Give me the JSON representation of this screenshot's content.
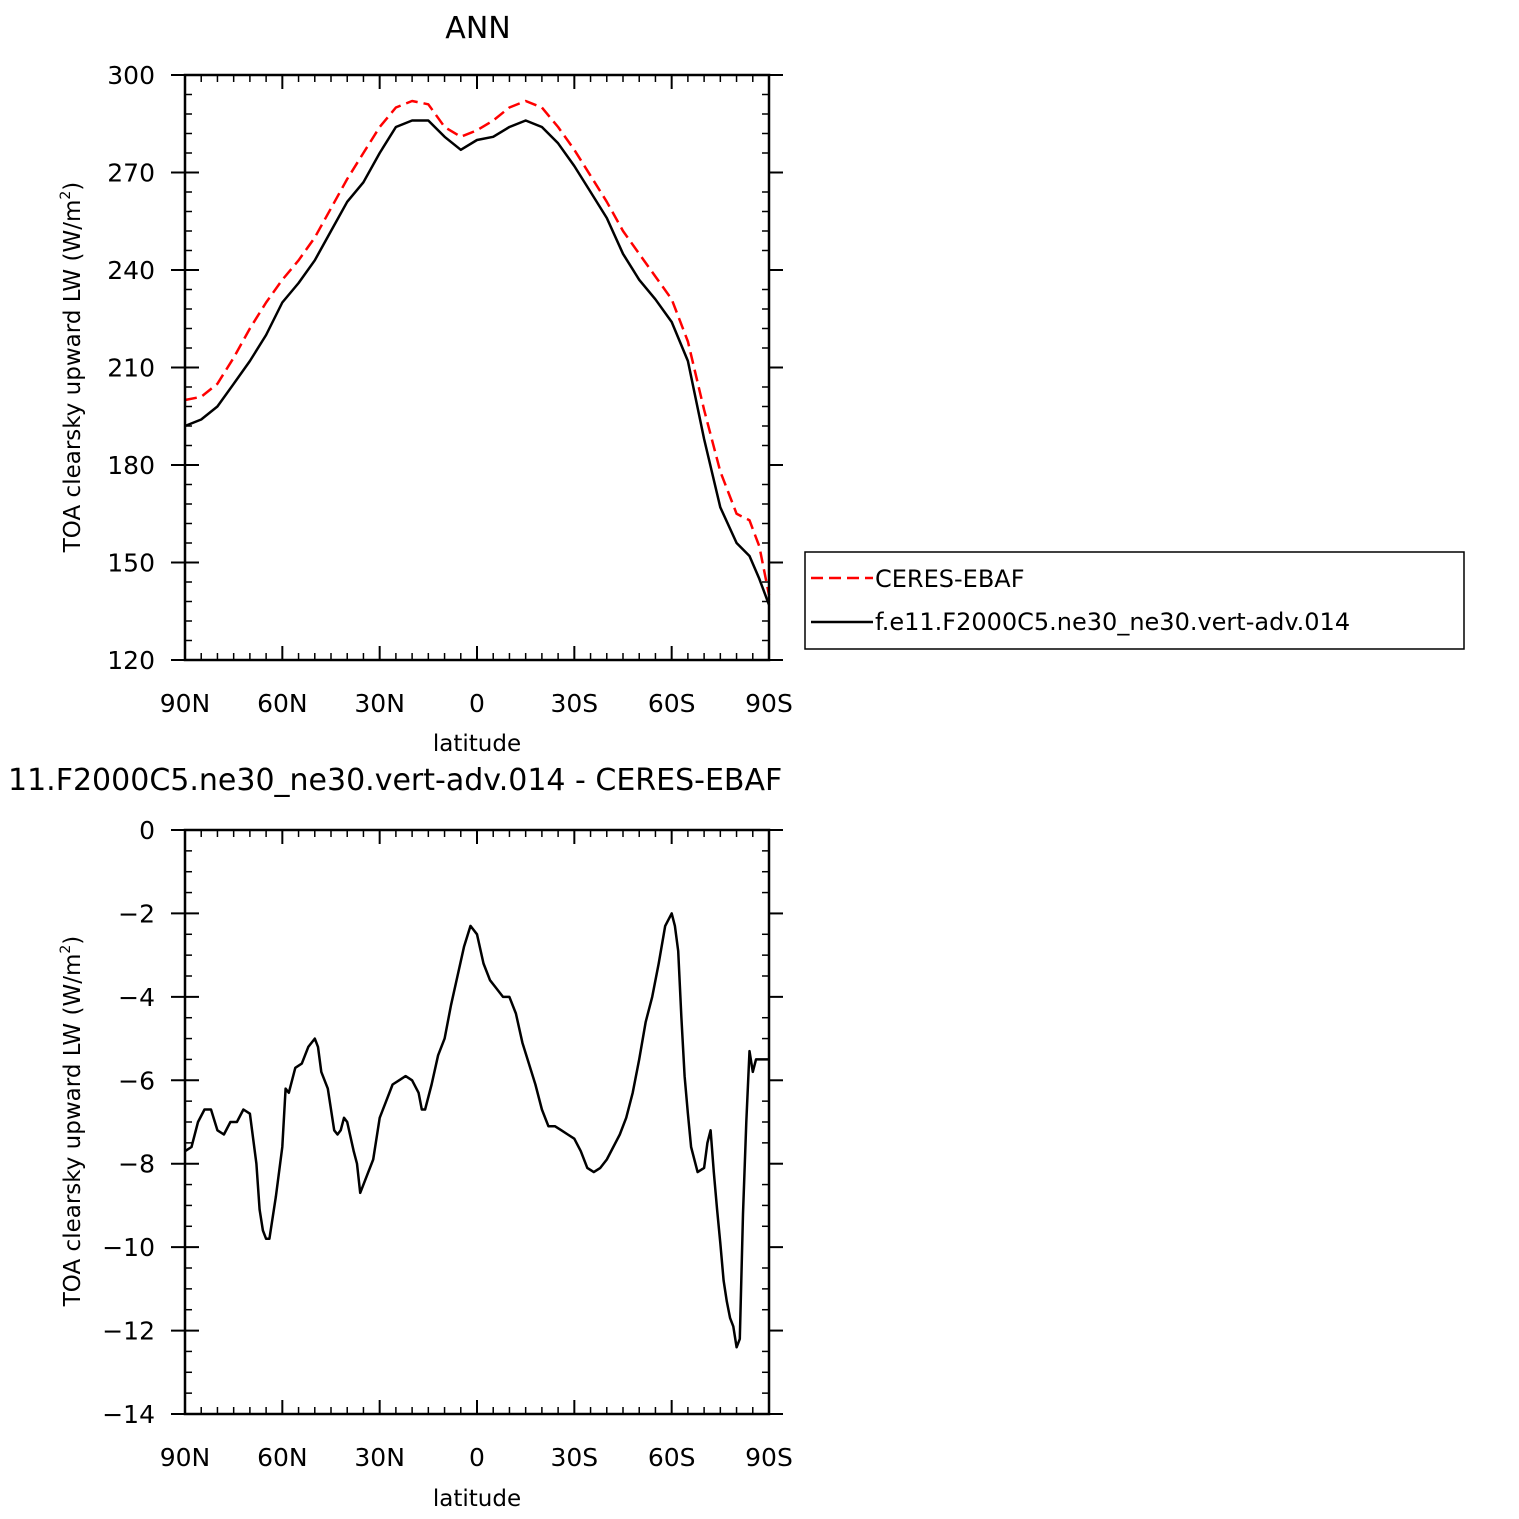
{
  "chart_data": [
    {
      "type": "line",
      "title": "ANN",
      "xlabel": "latitude",
      "ylabel": "TOA clearsky upward LW (W/m",
      "ylabel_sup": "2",
      "ylabel_close": ")",
      "xlim": [
        90,
        -90
      ],
      "ylim": [
        120,
        300
      ],
      "xticks": [
        90,
        60,
        30,
        0,
        -30,
        -60,
        -90
      ],
      "xticklabels": [
        "90N",
        "60N",
        "30N",
        "0",
        "30S",
        "60S",
        "90S"
      ],
      "yticks": [
        120,
        150,
        180,
        210,
        240,
        270,
        300
      ],
      "yticklabels": [
        "120",
        "150",
        "180",
        "210",
        "240",
        "270",
        "300"
      ],
      "legend_position": "right",
      "series": [
        {
          "name": "CERES-EBAF",
          "color": "#ff0000",
          "style": "dashed",
          "x": [
            90,
            85,
            80,
            75,
            70,
            65,
            60,
            55,
            50,
            45,
            40,
            35,
            30,
            25,
            20,
            15,
            10,
            5,
            0,
            -5,
            -10,
            -15,
            -20,
            -25,
            -30,
            -35,
            -40,
            -45,
            -50,
            -55,
            -60,
            -65,
            -70,
            -75,
            -80,
            -84,
            -87,
            -90
          ],
          "y": [
            200,
            201,
            205,
            213,
            222,
            230,
            237,
            243,
            250,
            259,
            268,
            276,
            284,
            290,
            292,
            291,
            284,
            281,
            283,
            286,
            290,
            292,
            290,
            284,
            277,
            269,
            261,
            252,
            245,
            238,
            231,
            218,
            197,
            178,
            165,
            163,
            155,
            140
          ]
        },
        {
          "name": "f.e11.F2000C5.ne30_ne30.vert-adv.014",
          "color": "#000000",
          "style": "solid",
          "x": [
            90,
            85,
            80,
            75,
            70,
            65,
            60,
            55,
            50,
            45,
            40,
            35,
            30,
            25,
            20,
            15,
            10,
            5,
            0,
            -5,
            -10,
            -15,
            -20,
            -25,
            -30,
            -35,
            -40,
            -45,
            -50,
            -55,
            -60,
            -65,
            -70,
            -75,
            -80,
            -84,
            -87,
            -90
          ],
          "y": [
            192,
            194,
            198,
            205,
            212,
            220,
            230,
            236,
            243,
            252,
            261,
            267,
            276,
            284,
            286,
            286,
            281,
            277,
            280,
            281,
            284,
            286,
            284,
            279,
            272,
            264,
            256,
            245,
            237,
            231,
            224,
            212,
            188,
            167,
            156,
            152,
            145,
            137
          ]
        }
      ]
    },
    {
      "type": "line",
      "title": "11.F2000C5.ne30_ne30.vert-adv.014 - CERES-EBAF",
      "xlabel": "latitude",
      "ylabel": "TOA clearsky upward LW (W/m",
      "ylabel_sup": "2",
      "ylabel_close": ")",
      "xlim": [
        90,
        -90
      ],
      "ylim": [
        -14,
        0
      ],
      "xticks": [
        90,
        60,
        30,
        0,
        -30,
        -60,
        -90
      ],
      "xticklabels": [
        "90N",
        "60N",
        "30N",
        "0",
        "30S",
        "60S",
        "90S"
      ],
      "yticks": [
        0,
        -2,
        -4,
        -6,
        -8,
        -10,
        -12,
        -14
      ],
      "yticklabels": [
        "0",
        "−2",
        "−4",
        "−6",
        "−8",
        "−10",
        "−12",
        "−14"
      ],
      "series": [
        {
          "name": "",
          "color": "#000000",
          "style": "solid",
          "x": [
            90,
            88,
            86,
            84,
            82,
            80,
            78,
            76,
            74,
            72,
            70,
            68,
            67,
            66,
            65,
            64,
            62,
            60,
            59,
            58,
            56,
            54,
            52,
            50,
            49,
            48,
            46,
            44,
            43,
            42,
            41,
            40,
            38,
            37,
            36,
            34,
            32,
            30,
            28,
            26,
            24,
            22,
            20,
            18,
            17,
            16,
            14,
            12,
            10,
            8,
            6,
            4,
            2,
            0,
            -2,
            -4,
            -6,
            -8,
            -10,
            -12,
            -14,
            -16,
            -18,
            -20,
            -22,
            -24,
            -26,
            -28,
            -30,
            -32,
            -34,
            -36,
            -38,
            -40,
            -42,
            -44,
            -46,
            -48,
            -50,
            -52,
            -54,
            -56,
            -58,
            -60,
            -61,
            -62,
            -63,
            -64,
            -65,
            -66,
            -68,
            -70,
            -71,
            -72,
            -73,
            -74,
            -75,
            -76,
            -77,
            -78,
            -79,
            -80,
            -81,
            -82,
            -83,
            -84,
            -85,
            -86,
            -87,
            -88,
            -89,
            -90
          ],
          "y": [
            -7.7,
            -7.6,
            -7.0,
            -6.7,
            -6.7,
            -7.2,
            -7.3,
            -7.0,
            -7.0,
            -6.7,
            -6.8,
            -8.0,
            -9.1,
            -9.6,
            -9.8,
            -9.8,
            -8.8,
            -7.6,
            -6.2,
            -6.3,
            -5.7,
            -5.6,
            -5.2,
            -5.0,
            -5.2,
            -5.8,
            -6.2,
            -7.2,
            -7.3,
            -7.2,
            -6.9,
            -7.0,
            -7.7,
            -8.0,
            -8.7,
            -8.3,
            -7.9,
            -6.9,
            -6.5,
            -6.1,
            -6.0,
            -5.9,
            -6.0,
            -6.3,
            -6.7,
            -6.7,
            -6.1,
            -5.4,
            -5.0,
            -4.2,
            -3.5,
            -2.8,
            -2.3,
            -2.5,
            -3.2,
            -3.6,
            -3.8,
            -4.0,
            -4.0,
            -4.4,
            -5.1,
            -5.6,
            -6.1,
            -6.7,
            -7.1,
            -7.1,
            -7.2,
            -7.3,
            -7.4,
            -7.7,
            -8.1,
            -8.2,
            -8.1,
            -7.9,
            -7.6,
            -7.3,
            -6.9,
            -6.3,
            -5.5,
            -4.6,
            -4.0,
            -3.2,
            -2.3,
            -2.0,
            -2.3,
            -2.9,
            -4.5,
            -5.9,
            -6.8,
            -7.6,
            -8.2,
            -8.1,
            -7.5,
            -7.2,
            -8.2,
            -9.1,
            -9.9,
            -10.8,
            -11.3,
            -11.7,
            -11.9,
            -12.4,
            -12.2,
            -9.2,
            -7.0,
            -5.3,
            -5.8,
            -5.5,
            -5.5,
            -5.5,
            -5.5,
            -5.5
          ]
        }
      ]
    }
  ]
}
